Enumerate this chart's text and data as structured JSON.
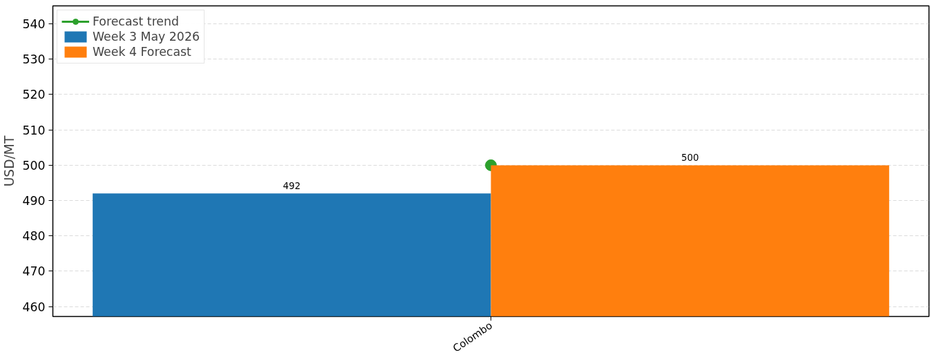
{
  "chart_data": {
    "type": "bar",
    "ylabel": "USD/MT",
    "categories": [
      "Colombo"
    ],
    "series": [
      {
        "name": "Forecast trend",
        "type": "line",
        "color": "#2ca02c",
        "values": [
          500
        ],
        "marker": "circle",
        "value_labels": [
          null
        ]
      },
      {
        "name": "Week 3 May 2026",
        "color": "#1f77b4",
        "values": [
          492
        ]
      },
      {
        "name": "Week 4 Forecast",
        "color": "#ff7f0e",
        "values": [
          500
        ]
      }
    ],
    "ylim": [
      457.2,
      545.1
    ],
    "yticks": [
      460,
      470,
      480,
      490,
      500,
      510,
      520,
      530,
      540
    ],
    "grid": "y",
    "legend": "top left",
    "data_labels": true
  }
}
